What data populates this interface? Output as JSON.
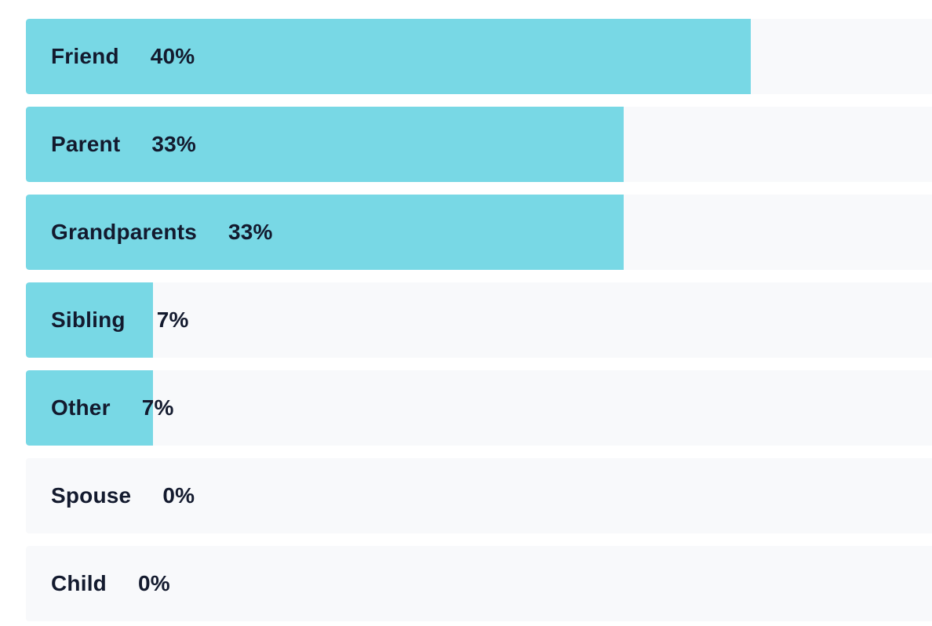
{
  "chart_data": {
    "type": "bar",
    "orientation": "horizontal",
    "categories": [
      "Friend",
      "Parent",
      "Grandparents",
      "Sibling",
      "Other",
      "Spouse",
      "Child"
    ],
    "values": [
      40,
      33,
      33,
      7,
      7,
      0,
      0
    ],
    "value_labels": [
      "40%",
      "33%",
      "33%",
      "7%",
      "7%",
      "0%",
      "0%"
    ],
    "unit": "%",
    "max_value": 50,
    "bar_color": "#78d8e5",
    "track_color": "#f8f9fb",
    "text_color": "#131a2e",
    "grid": false
  }
}
